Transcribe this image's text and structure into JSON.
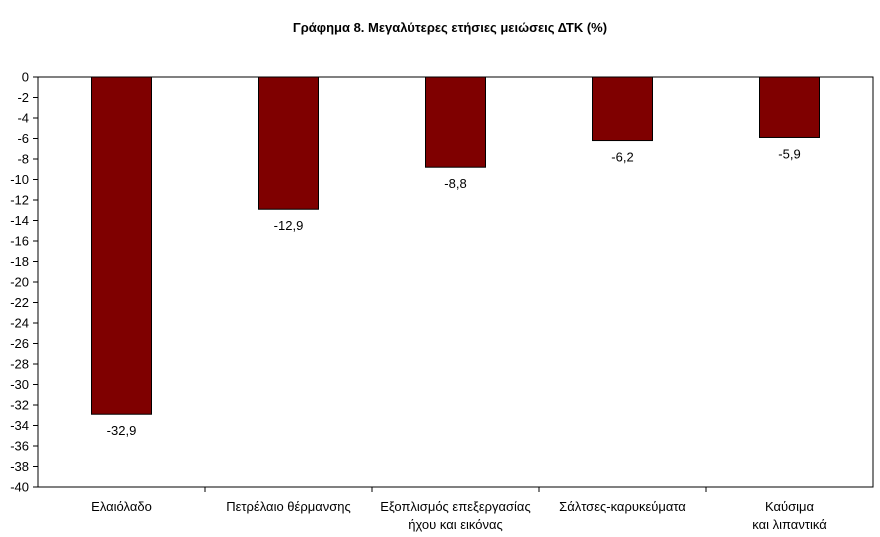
{
  "chart_data": {
    "type": "bar",
    "title": "Γράφημα 8. Μεγαλύτερες ετήσιες μειώσεις ΔΤΚ (%)",
    "xlabel": "",
    "ylabel": "",
    "categories": [
      [
        "Ελαιόλαδο"
      ],
      [
        "Πετρέλαιο θέρμανσης"
      ],
      [
        "Εξοπλισμός επεξεργασίας",
        "ήχου και εικόνας"
      ],
      [
        "Σάλτσες-καρυκεύματα"
      ],
      [
        "Καύσιμα",
        "και λιπαντικά"
      ]
    ],
    "values": [
      -32.9,
      -12.9,
      -8.8,
      -6.2,
      -5.9
    ],
    "data_labels": [
      "-32,9",
      "-12,9",
      "-8,8",
      "-6,2",
      "-5,9"
    ],
    "ylim": [
      -40,
      0
    ],
    "yticks": [
      0,
      -2,
      -4,
      -6,
      -8,
      -10,
      -12,
      -14,
      -16,
      -18,
      -20,
      -22,
      -24,
      -26,
      -28,
      -30,
      -32,
      -34,
      -36,
      -38,
      -40
    ],
    "bar_color": "#7f0000",
    "grid": false,
    "legend": "none"
  }
}
